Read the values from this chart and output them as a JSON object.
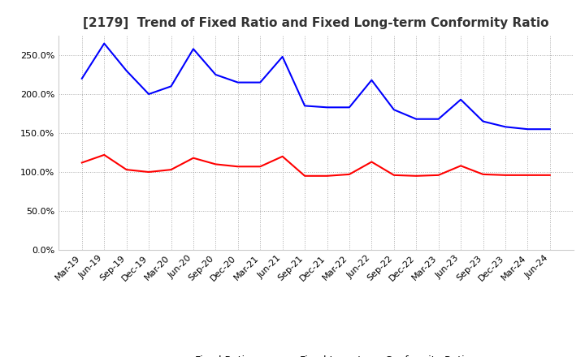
{
  "title": "[2179]  Trend of Fixed Ratio and Fixed Long-term Conformity Ratio",
  "x_labels": [
    "Mar-19",
    "Jun-19",
    "Sep-19",
    "Dec-19",
    "Mar-20",
    "Jun-20",
    "Sep-20",
    "Dec-20",
    "Mar-21",
    "Jun-21",
    "Sep-21",
    "Dec-21",
    "Mar-22",
    "Jun-22",
    "Sep-22",
    "Dec-22",
    "Mar-23",
    "Jun-23",
    "Sep-23",
    "Dec-23",
    "Mar-24",
    "Jun-24"
  ],
  "fixed_ratio": [
    220.0,
    265.0,
    230.0,
    200.0,
    210.0,
    258.0,
    225.0,
    215.0,
    215.0,
    248.0,
    185.0,
    183.0,
    183.0,
    218.0,
    180.0,
    168.0,
    168.0,
    193.0,
    165.0,
    158.0,
    155.0,
    155.0
  ],
  "fixed_lt_ratio": [
    112.0,
    122.0,
    103.0,
    100.0,
    103.0,
    118.0,
    110.0,
    107.0,
    107.0,
    120.0,
    95.0,
    95.0,
    97.0,
    113.0,
    96.0,
    95.0,
    96.0,
    108.0,
    97.0,
    96.0,
    96.0,
    96.0
  ],
  "fixed_ratio_color": "#0000FF",
  "fixed_lt_ratio_color": "#FF0000",
  "ylim": [
    0.0,
    275.0
  ],
  "yticks": [
    0.0,
    50.0,
    100.0,
    150.0,
    200.0,
    250.0
  ],
  "background_color": "#FFFFFF",
  "plot_bg_color": "#FFFFFF",
  "grid_color": "#AAAAAA",
  "legend_fixed_ratio": "Fixed Ratio",
  "legend_fixed_lt_ratio": "Fixed Long-term Conformity Ratio",
  "title_fontsize": 11,
  "axis_fontsize": 8,
  "legend_fontsize": 9,
  "line_width": 1.5
}
